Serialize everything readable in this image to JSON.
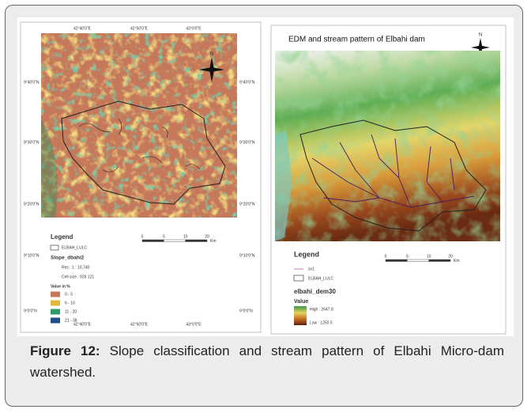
{
  "figure": {
    "left_panel": {
      "top_labels": [
        "42°40'0\"E",
        "42°50'0\"E",
        "43°0'0\"E"
      ],
      "side_labels": [
        "9°40'0\"N",
        "9°30'0\"N",
        "9°20'0\"N",
        "9°10'0\"N",
        "9°0'0\"N"
      ],
      "legend": {
        "title": "Legend",
        "layer": "ELBAH_LULC",
        "raster": "Slope_dbahi2",
        "res": "Res : 1 : 10,740",
        "cell": "Cell size : 926 121",
        "value_title": "Value in %",
        "classes": [
          {
            "label": "0 - 5",
            "color": "#c8765a"
          },
          {
            "label": "6 - 10",
            "color": "#e0b83a"
          },
          {
            "label": "11 - 20",
            "color": "#2f9a6a"
          },
          {
            "label": "21 - 38",
            "color": "#1f4f8a"
          }
        ]
      },
      "scale": [
        "0",
        "5",
        "10",
        "20"
      ],
      "scale_unit": "Km"
    },
    "right_panel": {
      "title": "EDM and stream pattern of  Elbahi dam",
      "legend": {
        "title": "Legend",
        "stream": "sv1",
        "layer": "ELBAH_LULC",
        "raster": "elbahi_dem30",
        "value_title": "Value",
        "high": "High : 2647.8",
        "low": "Low : 1250.5"
      },
      "scale": [
        "0",
        "5",
        "10",
        "20"
      ],
      "scale_unit": "Km"
    }
  },
  "caption": {
    "label": "Figure 12:",
    "text": "Slope classification and stream pattern of Elbahi Micro-dam watershed."
  }
}
